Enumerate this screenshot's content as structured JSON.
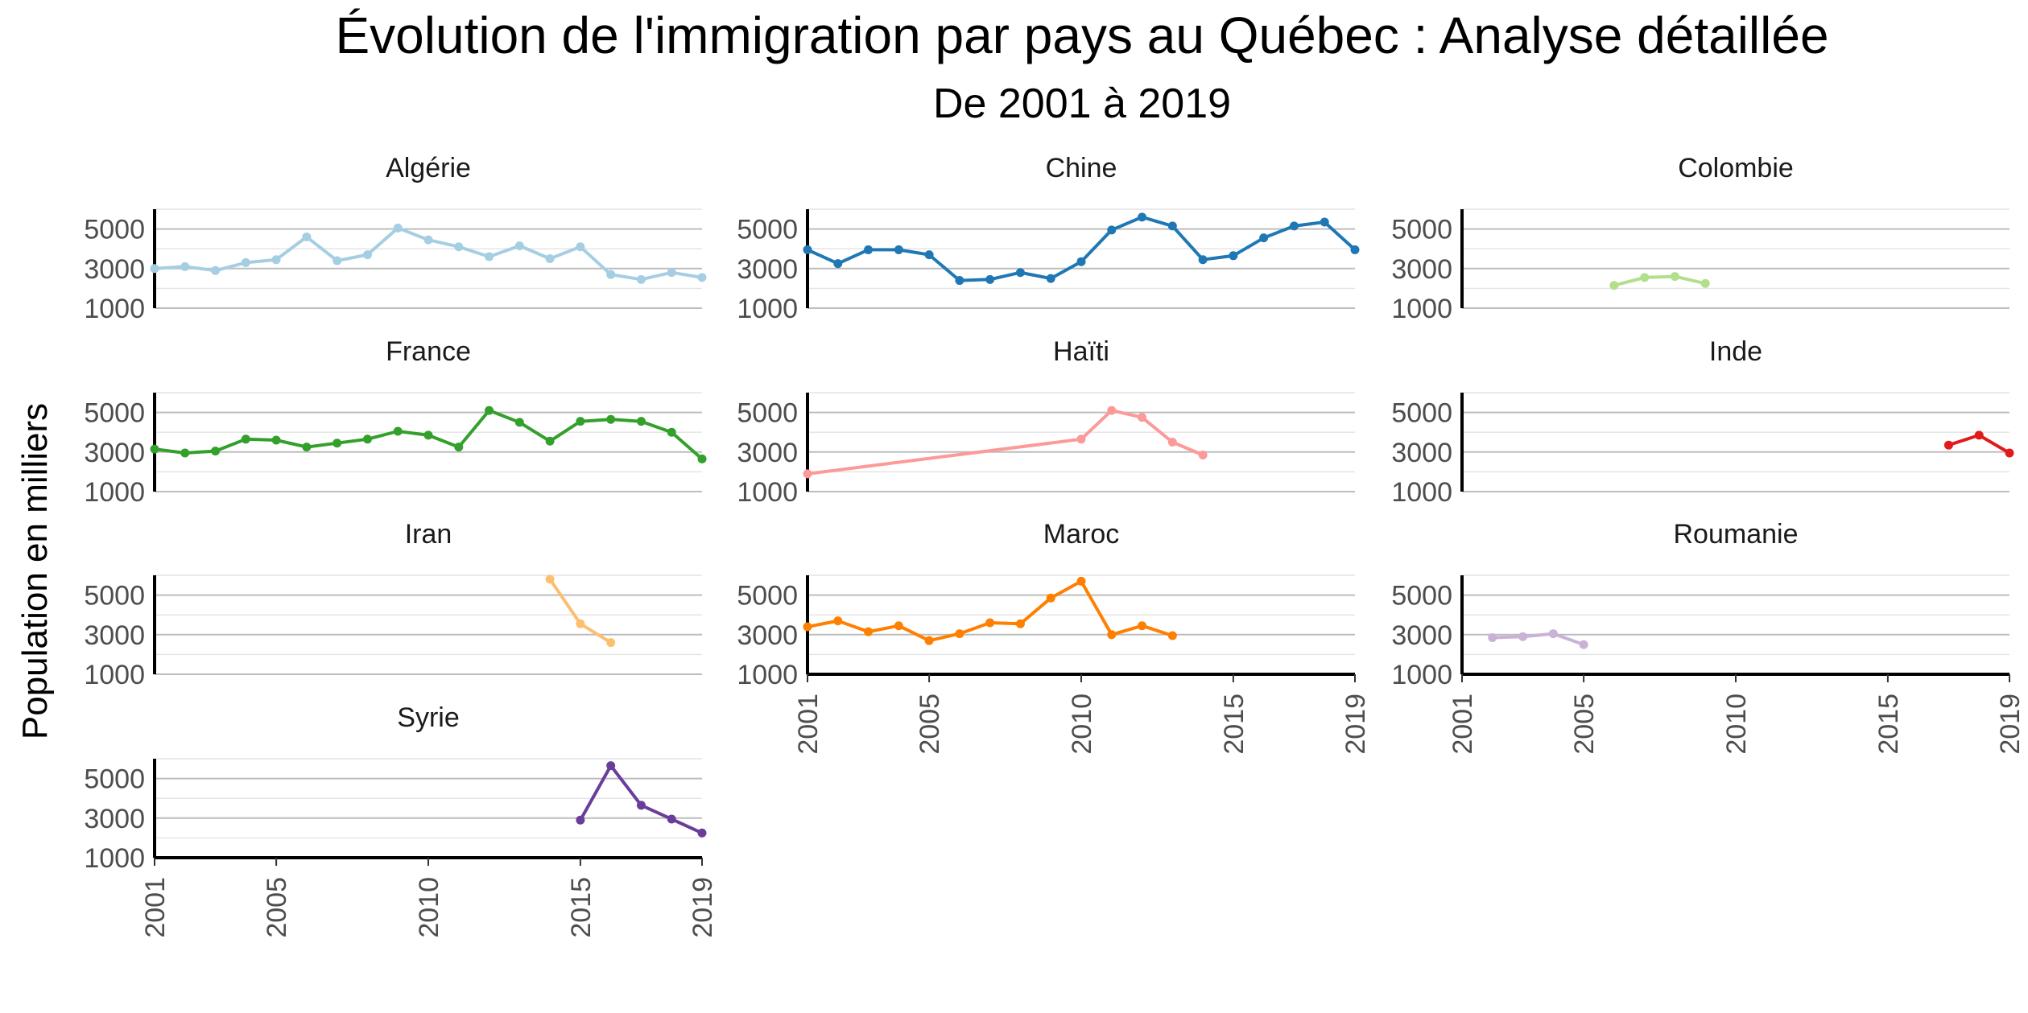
{
  "chart_data": {
    "type": "line",
    "title": "Évolution de l'immigration par pays au Québec : Analyse détaillée",
    "subtitle": "De 2001 à 2019",
    "xlabel": "",
    "ylabel": "Population en milliers",
    "xlim": [
      2001,
      2019
    ],
    "ylim": [
      1000,
      6000
    ],
    "x_ticks": [
      2001,
      2005,
      2010,
      2015,
      2019
    ],
    "y_ticks": [
      1000,
      3000,
      5000
    ],
    "grid": true,
    "facets": [
      {
        "name": "Algérie",
        "color": "#a6cee3",
        "points": [
          [
            2001,
            3000
          ],
          [
            2002,
            3100
          ],
          [
            2003,
            2900
          ],
          [
            2004,
            3300
          ],
          [
            2005,
            3450
          ],
          [
            2006,
            4600
          ],
          [
            2007,
            3400
          ],
          [
            2008,
            3700
          ],
          [
            2009,
            5050
          ],
          [
            2010,
            4450
          ],
          [
            2011,
            4100
          ],
          [
            2012,
            3600
          ],
          [
            2013,
            4150
          ],
          [
            2014,
            3500
          ],
          [
            2015,
            4100
          ],
          [
            2016,
            2700
          ],
          [
            2017,
            2450
          ],
          [
            2018,
            2800
          ],
          [
            2019,
            2550
          ]
        ]
      },
      {
        "name": "Chine",
        "color": "#1f78b4",
        "points": [
          [
            2001,
            3950
          ],
          [
            2002,
            3250
          ],
          [
            2003,
            3950
          ],
          [
            2004,
            3950
          ],
          [
            2005,
            3700
          ],
          [
            2006,
            2400
          ],
          [
            2007,
            2450
          ],
          [
            2008,
            2800
          ],
          [
            2009,
            2500
          ],
          [
            2010,
            3350
          ],
          [
            2011,
            4950
          ],
          [
            2012,
            5600
          ],
          [
            2013,
            5150
          ],
          [
            2014,
            3450
          ],
          [
            2015,
            3650
          ],
          [
            2016,
            4550
          ],
          [
            2017,
            5150
          ],
          [
            2018,
            5350
          ],
          [
            2019,
            3950
          ]
        ]
      },
      {
        "name": "Colombie",
        "color": "#b2df8a",
        "points": [
          [
            2006,
            2150
          ],
          [
            2007,
            2550
          ],
          [
            2008,
            2600
          ],
          [
            2009,
            2250
          ]
        ]
      },
      {
        "name": "France",
        "color": "#33a02c",
        "points": [
          [
            2001,
            3150
          ],
          [
            2002,
            2950
          ],
          [
            2003,
            3050
          ],
          [
            2004,
            3650
          ],
          [
            2005,
            3600
          ],
          [
            2006,
            3250
          ],
          [
            2007,
            3450
          ],
          [
            2008,
            3650
          ],
          [
            2009,
            4050
          ],
          [
            2010,
            3850
          ],
          [
            2011,
            3250
          ],
          [
            2012,
            5100
          ],
          [
            2013,
            4500
          ],
          [
            2014,
            3550
          ],
          [
            2015,
            4550
          ],
          [
            2016,
            4650
          ],
          [
            2017,
            4550
          ],
          [
            2018,
            4000
          ],
          [
            2019,
            2650
          ]
        ]
      },
      {
        "name": "Haïti",
        "color": "#fb9a99",
        "points": [
          [
            2001,
            1900
          ],
          [
            2010,
            3650
          ],
          [
            2011,
            5100
          ],
          [
            2012,
            4750
          ],
          [
            2013,
            3500
          ],
          [
            2014,
            2850
          ]
        ]
      },
      {
        "name": "Inde",
        "color": "#e31a1c",
        "points": [
          [
            2017,
            3350
          ],
          [
            2018,
            3850
          ],
          [
            2019,
            2950
          ]
        ]
      },
      {
        "name": "Iran",
        "color": "#fdbf6f",
        "points": [
          [
            2014,
            5800
          ],
          [
            2015,
            3550
          ],
          [
            2016,
            2600
          ]
        ]
      },
      {
        "name": "Maroc",
        "color": "#ff7f00",
        "points": [
          [
            2001,
            3400
          ],
          [
            2002,
            3700
          ],
          [
            2003,
            3150
          ],
          [
            2004,
            3450
          ],
          [
            2005,
            2700
          ],
          [
            2006,
            3050
          ],
          [
            2007,
            3600
          ],
          [
            2008,
            3550
          ],
          [
            2009,
            4850
          ],
          [
            2010,
            5700
          ],
          [
            2011,
            3000
          ],
          [
            2012,
            3450
          ],
          [
            2013,
            2950
          ]
        ]
      },
      {
        "name": "Roumanie",
        "color": "#cab2d6",
        "points": [
          [
            2002,
            2850
          ],
          [
            2003,
            2900
          ],
          [
            2004,
            3050
          ],
          [
            2005,
            2500
          ]
        ]
      },
      {
        "name": "Syrie",
        "color": "#6a3d9a",
        "points": [
          [
            2015,
            2900
          ],
          [
            2016,
            5650
          ],
          [
            2017,
            3650
          ],
          [
            2018,
            2950
          ],
          [
            2019,
            2250
          ]
        ]
      }
    ]
  }
}
